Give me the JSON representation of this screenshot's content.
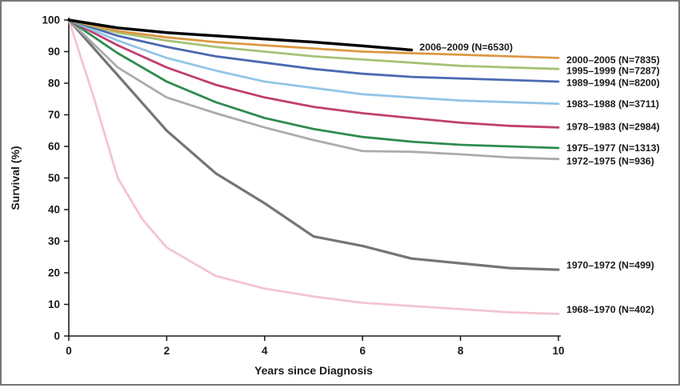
{
  "figure": {
    "background": "#ffffff",
    "border_color": "#777777"
  },
  "chart_data": {
    "type": "line",
    "title": "",
    "xlabel": "Years since Diagnosis",
    "ylabel": "Survival (%)",
    "xlim": [
      0,
      10
    ],
    "ylim": [
      0,
      100
    ],
    "xticks": [
      0,
      2,
      4,
      6,
      8,
      10
    ],
    "yticks": [
      0,
      10,
      20,
      30,
      40,
      50,
      60,
      70,
      80,
      90,
      100
    ],
    "grid": false,
    "legend_position": "right-of-lines",
    "series": [
      {
        "id": "2006-2009",
        "label": "2006–2009 (N=6530)",
        "color": "#000000",
        "width": 3.5,
        "inline_label": true,
        "label_value": 91.5,
        "x": [
          0,
          1,
          2,
          3,
          4,
          5,
          6,
          7
        ],
        "y": [
          100,
          97.5,
          96,
          95,
          94,
          93,
          91.8,
          90.5
        ]
      },
      {
        "id": "2000-2005",
        "label": "2000–2005 (N=7835)",
        "color": "#DB9843",
        "width": 2.8,
        "inline_label": false,
        "label_value": 87.5,
        "x": [
          0,
          1,
          2,
          3,
          4,
          5,
          6,
          7,
          8,
          9,
          10
        ],
        "y": [
          100,
          96.5,
          94.5,
          93,
          92,
          91,
          90,
          89.5,
          89,
          88.5,
          88
        ]
      },
      {
        "id": "1995-1999",
        "label": "1995–1999 (N=7287)",
        "color": "#A6C276",
        "width": 2.8,
        "inline_label": false,
        "label_value": 84,
        "x": [
          0,
          1,
          2,
          3,
          4,
          5,
          6,
          7,
          8,
          9,
          10
        ],
        "y": [
          100,
          96,
          93.5,
          91.5,
          90,
          88.5,
          87.5,
          86.5,
          85.5,
          85,
          84.5
        ]
      },
      {
        "id": "1989-1994",
        "label": "1989–1994 (N=8200)",
        "color": "#4A69B0",
        "width": 2.8,
        "inline_label": false,
        "label_value": 80.3,
        "x": [
          0,
          1,
          2,
          3,
          4,
          5,
          6,
          7,
          8,
          9,
          10
        ],
        "y": [
          100,
          95,
          91.5,
          88.5,
          86.5,
          84.5,
          83,
          82,
          81.5,
          81,
          80.5
        ]
      },
      {
        "id": "1983-1988",
        "label": "1983–1988 (N=3711)",
        "color": "#93C5E6",
        "width": 2.8,
        "inline_label": false,
        "label_value": 73.6,
        "x": [
          0,
          1,
          2,
          3,
          4,
          5,
          6,
          7,
          8,
          9,
          10
        ],
        "y": [
          100,
          93.5,
          88,
          84,
          80.5,
          78.5,
          76.5,
          75.5,
          74.5,
          74,
          73.5
        ]
      },
      {
        "id": "1978-1983",
        "label": "1978–1983 (N=2984)",
        "color": "#BF3F6F",
        "width": 2.8,
        "inline_label": false,
        "label_value": 66.3,
        "x": [
          0,
          1,
          2,
          3,
          4,
          5,
          6,
          7,
          8,
          9,
          10
        ],
        "y": [
          100,
          92,
          85,
          79.5,
          75.5,
          72.5,
          70.5,
          69,
          67.5,
          66.5,
          66
        ]
      },
      {
        "id": "1975-1977",
        "label": "1975–1977 (N=1313)",
        "color": "#2E8B4F",
        "width": 2.8,
        "inline_label": false,
        "label_value": 59.6,
        "x": [
          0,
          1,
          2,
          3,
          4,
          5,
          6,
          7,
          8,
          9,
          10
        ],
        "y": [
          100,
          89.5,
          80.5,
          74,
          69,
          65.5,
          63,
          61.5,
          60.5,
          60,
          59.5
        ]
      },
      {
        "id": "1972-1975",
        "label": "1972–1975 (N=936)",
        "color": "#ABABAB",
        "width": 2.8,
        "inline_label": false,
        "label_value": 55.4,
        "x": [
          0,
          1,
          2,
          3,
          4,
          5,
          6,
          7,
          8,
          9,
          10
        ],
        "y": [
          100,
          85,
          75.5,
          70.5,
          66,
          62,
          58.5,
          58.3,
          57.5,
          56.5,
          56
        ]
      },
      {
        "id": "1970-1972",
        "label": "1970–1972 (N=499)",
        "color": "#757575",
        "width": 3.2,
        "inline_label": false,
        "label_value": 22.5,
        "x": [
          0,
          1,
          2,
          3,
          4,
          5,
          6,
          7,
          8,
          9,
          10
        ],
        "y": [
          100,
          82.5,
          65,
          51.5,
          42,
          31.5,
          28.5,
          24.5,
          23,
          21.5,
          21
        ]
      },
      {
        "id": "1968-1970",
        "label": "1968–1970 (N=402)",
        "color": "#F3C5CE",
        "width": 2.8,
        "inline_label": false,
        "label_value": 8.5,
        "x": [
          0,
          0.5,
          1,
          1.5,
          2,
          3,
          4,
          5,
          6,
          7,
          8,
          9,
          10
        ],
        "y": [
          100,
          76,
          50,
          37,
          28,
          19,
          15,
          12.5,
          10.5,
          9.5,
          8.5,
          7.5,
          7
        ]
      }
    ]
  }
}
